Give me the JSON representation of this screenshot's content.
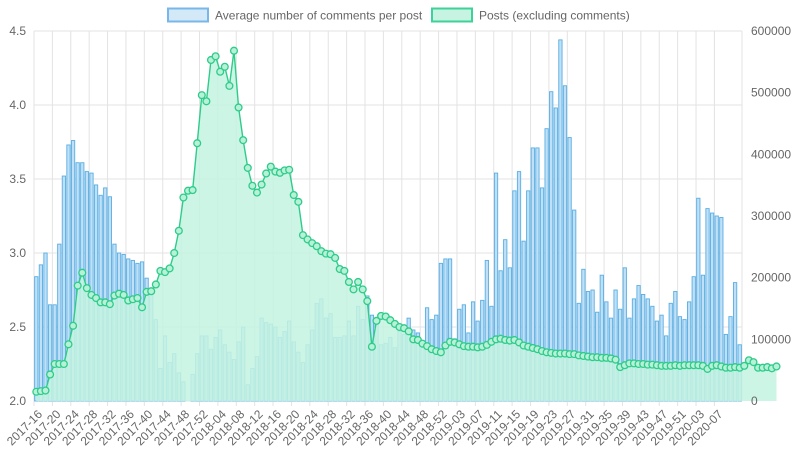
{
  "chart_data": {
    "type": "bar",
    "legend_position": "top-center",
    "grid": true,
    "legend": [
      {
        "label": "Average number of comments per post",
        "fill": "#d4e9f8",
        "stroke": "#79b7e8"
      },
      {
        "label": "Posts (excluding comments)",
        "fill": "#c7f3e2",
        "stroke": "#3dd29a"
      }
    ],
    "y_left": {
      "min": 2.0,
      "max": 4.5,
      "ticks": [
        "2.0",
        "2.5",
        "3.0",
        "3.5",
        "4.0",
        "4.5"
      ]
    },
    "y_right": {
      "min": 0,
      "max": 600000,
      "ticks": [
        "0",
        "100000",
        "200000",
        "300000",
        "400000",
        "500000",
        "600000"
      ]
    },
    "x_tick_labels": [
      "2017-16",
      "2017-20",
      "2017-24",
      "2017-28",
      "2017-32",
      "2017-36",
      "2017-40",
      "2017-44",
      "2017-48",
      "2017-52",
      "2018-04",
      "2018-08",
      "2018-12",
      "2018-16",
      "2018-20",
      "2018-24",
      "2018-28",
      "2018-32",
      "2018-36",
      "2018-40",
      "2018-44",
      "2018-48",
      "2018-52",
      "2019-03",
      "2019-07",
      "2019-11",
      "2019-15",
      "2019-19",
      "2019-23",
      "2019-27",
      "2019-31",
      "2019-35",
      "2019-39",
      "2019-43",
      "2019-47",
      "2019-51",
      "2020-03",
      "2020-07"
    ],
    "series": [
      {
        "name": "Average number of comments per post",
        "kind": "bar",
        "axis": "left",
        "color": "#5aaee3",
        "fill": "#bfe0f6",
        "values": [
          2.84,
          2.92,
          3.0,
          2.65,
          2.65,
          3.06,
          3.52,
          3.73,
          3.76,
          3.61,
          3.61,
          3.55,
          3.54,
          3.46,
          3.39,
          3.44,
          3.38,
          3.06,
          3.0,
          2.99,
          2.96,
          2.95,
          2.93,
          2.94,
          2.83,
          2.76,
          2.55,
          2.22,
          2.44,
          2.26,
          2.32,
          2.19,
          2.13,
          2.0,
          2.18,
          2.32,
          2.44,
          2.44,
          2.35,
          2.43,
          2.48,
          2.38,
          2.33,
          2.28,
          2.4,
          2.5,
          2.11,
          2.22,
          2.3,
          2.56,
          2.53,
          2.52,
          2.5,
          2.43,
          2.47,
          2.54,
          2.4,
          2.33,
          2.26,
          2.38,
          2.48,
          2.66,
          2.69,
          2.56,
          2.59,
          2.43,
          2.43,
          2.44,
          2.54,
          2.44,
          2.64,
          2.55,
          2.71,
          2.58,
          2.52,
          2.38,
          2.39,
          2.43,
          2.36,
          2.47,
          2.45,
          2.56,
          2.48,
          2.46,
          2.38,
          2.63,
          2.55,
          2.58,
          2.93,
          2.96,
          2.96,
          2.42,
          2.62,
          2.65,
          2.46,
          2.67,
          2.54,
          2.68,
          2.95,
          2.64,
          3.54,
          2.88,
          3.09,
          2.9,
          3.42,
          3.55,
          3.08,
          3.42,
          3.71,
          3.71,
          3.44,
          3.84,
          4.09,
          3.98,
          4.44,
          4.13,
          3.78,
          3.29,
          2.66,
          2.89,
          2.74,
          2.75,
          2.6,
          2.85,
          2.67,
          2.56,
          2.75,
          2.62,
          2.9,
          2.56,
          2.69,
          2.78,
          2.72,
          2.69,
          2.64,
          2.54,
          2.58,
          2.44,
          2.66,
          2.74,
          2.57,
          2.55,
          2.67,
          2.84,
          3.37,
          2.85,
          3.3,
          3.27,
          3.25,
          3.24,
          2.45,
          2.57,
          2.8,
          2.38
        ]
      },
      {
        "name": "Posts (excluding comments)",
        "kind": "line",
        "axis": "right",
        "color": "#2ecc8a",
        "fill": "#c4f3e1",
        "values": [
          15000,
          16000,
          17000,
          43000,
          60000,
          60000,
          60000,
          92000,
          122000,
          187000,
          208000,
          183000,
          172000,
          167000,
          160000,
          160000,
          157000,
          171000,
          174000,
          172000,
          163000,
          165000,
          167000,
          152000,
          177000,
          178000,
          189000,
          211000,
          209000,
          215000,
          240000,
          276000,
          330000,
          341000,
          342000,
          418000,
          496000,
          486000,
          553000,
          559000,
          534000,
          542000,
          511000,
          568000,
          476000,
          423000,
          378000,
          349000,
          338000,
          351000,
          369000,
          380000,
          372000,
          370000,
          374000,
          375000,
          334000,
          323000,
          269000,
          262000,
          256000,
          251000,
          243000,
          239000,
          238000,
          232000,
          214000,
          211000,
          193000,
          181000,
          193000,
          181000,
          162000,
          88000,
          130000,
          138000,
          137000,
          131000,
          125000,
          120000,
          118000,
          113000,
          100000,
          99000,
          93000,
          89000,
          84000,
          81000,
          79000,
          90000,
          96000,
          95000,
          92000,
          89000,
          88000,
          88000,
          87000,
          88000,
          91000,
          96000,
          100000,
          101000,
          99000,
          98000,
          99000,
          95000,
          90000,
          88000,
          86000,
          84000,
          81000,
          79000,
          78000,
          77000,
          77000,
          77000,
          76000,
          76000,
          74000,
          73000,
          72000,
          71000,
          71000,
          70000,
          70000,
          69000,
          67000,
          55000,
          58000,
          61000,
          61000,
          60000,
          60000,
          59000,
          59000,
          58000,
          57000,
          57000,
          57000,
          58000,
          57000,
          58000,
          58000,
          58000,
          58000,
          57000,
          52000,
          57000,
          58000,
          56000,
          54000,
          54000,
          55000,
          54000,
          57000,
          66000,
          63000,
          54000,
          54000,
          55000,
          53000,
          56000
        ]
      }
    ]
  }
}
